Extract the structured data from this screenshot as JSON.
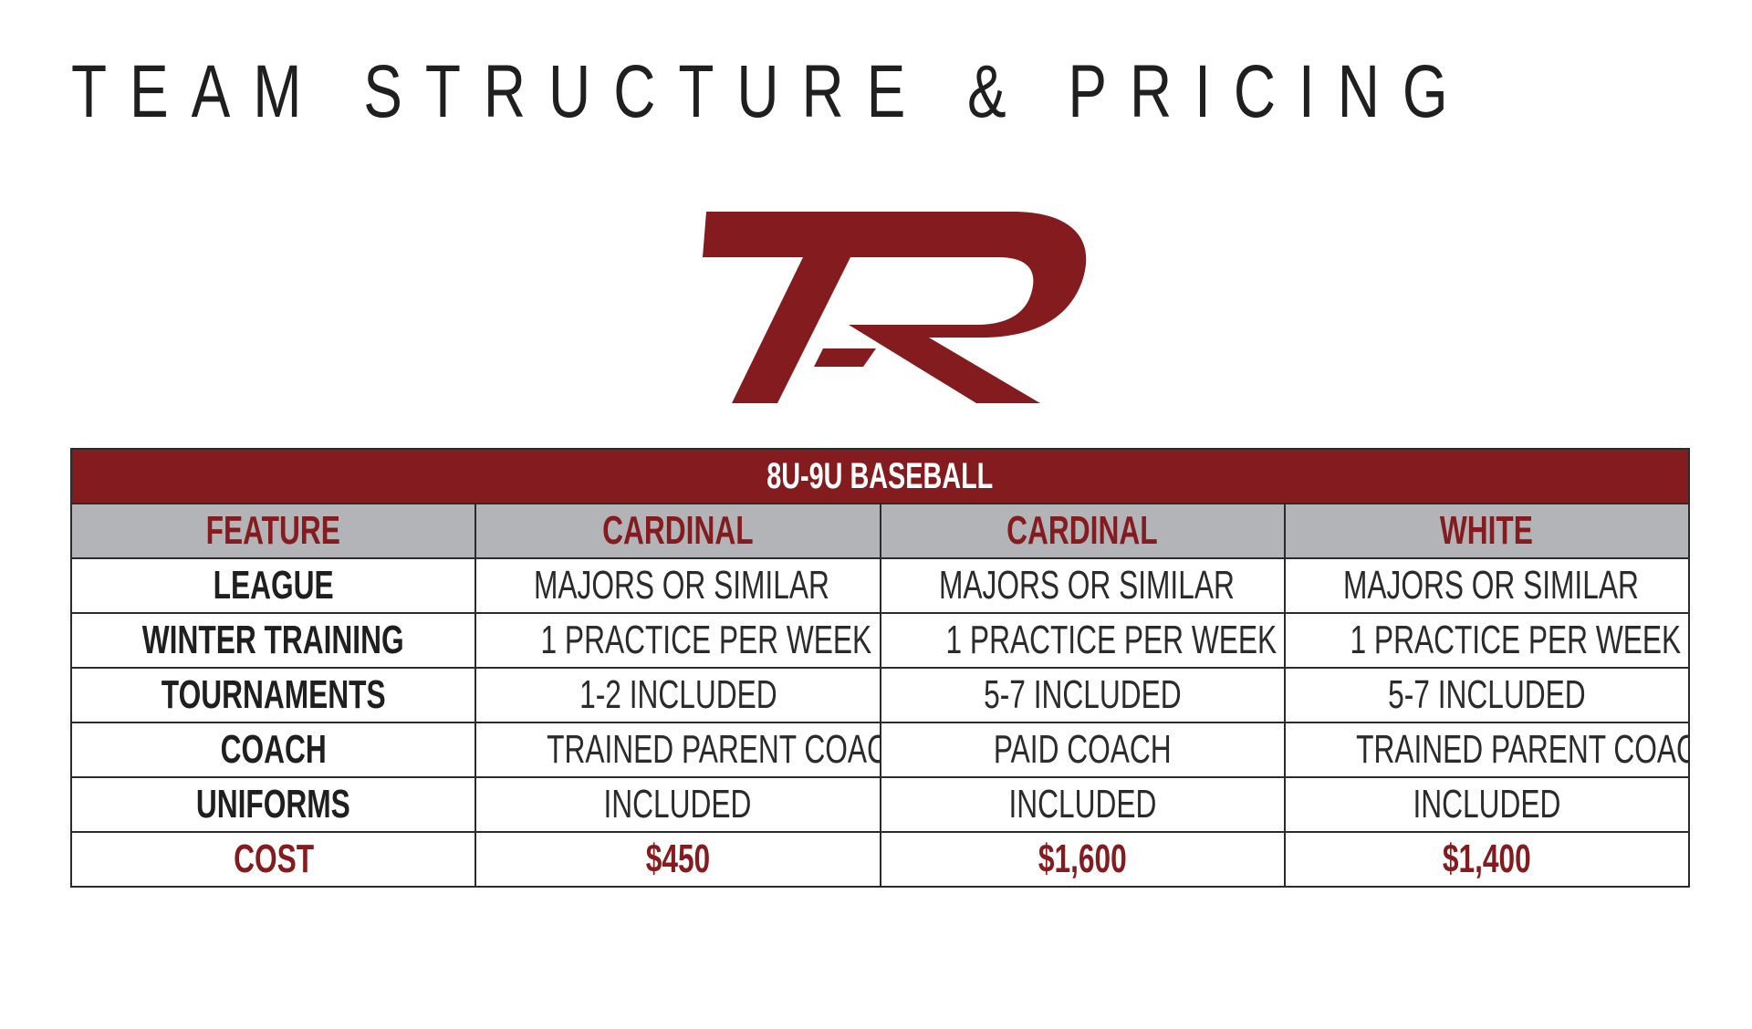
{
  "page": {
    "title": "TEAM STRUCTURE & PRICING"
  },
  "logo": {
    "icon": "tpr-monogram-logo",
    "color": "#841c1f"
  },
  "table": {
    "section_title": "8U-9U BASEBALL",
    "headers": [
      "FEATURE",
      "CARDINAL",
      "CARDINAL",
      "WHITE"
    ],
    "rows": [
      {
        "feature": "LEAGUE",
        "values": [
          "MAJORS OR SIMILAR",
          "MAJORS OR SIMILAR",
          "MAJORS OR SIMILAR"
        ]
      },
      {
        "feature": "WINTER TRAINING",
        "values": [
          "1 PRACTICE PER WEEK",
          "1 PRACTICE PER WEEK",
          "1 PRACTICE PER WEEK"
        ]
      },
      {
        "feature": "TOURNAMENTS",
        "values": [
          "1-2 INCLUDED",
          "5-7 INCLUDED",
          "5-7 INCLUDED"
        ]
      },
      {
        "feature": "COACH",
        "values": [
          "TRAINED PARENT COACH",
          "PAID COACH",
          "TRAINED PARENT COACH"
        ]
      },
      {
        "feature": "UNIFORMS",
        "values": [
          "INCLUDED",
          "INCLUDED",
          "INCLUDED"
        ]
      },
      {
        "feature": "COST",
        "values": [
          "$450",
          "$1,600",
          "$1,400"
        ]
      }
    ]
  },
  "colors": {
    "accent": "#841c1f",
    "header_bg": "#b3b4b7",
    "text": "#1f1f1f",
    "border": "#2b2b2b"
  }
}
